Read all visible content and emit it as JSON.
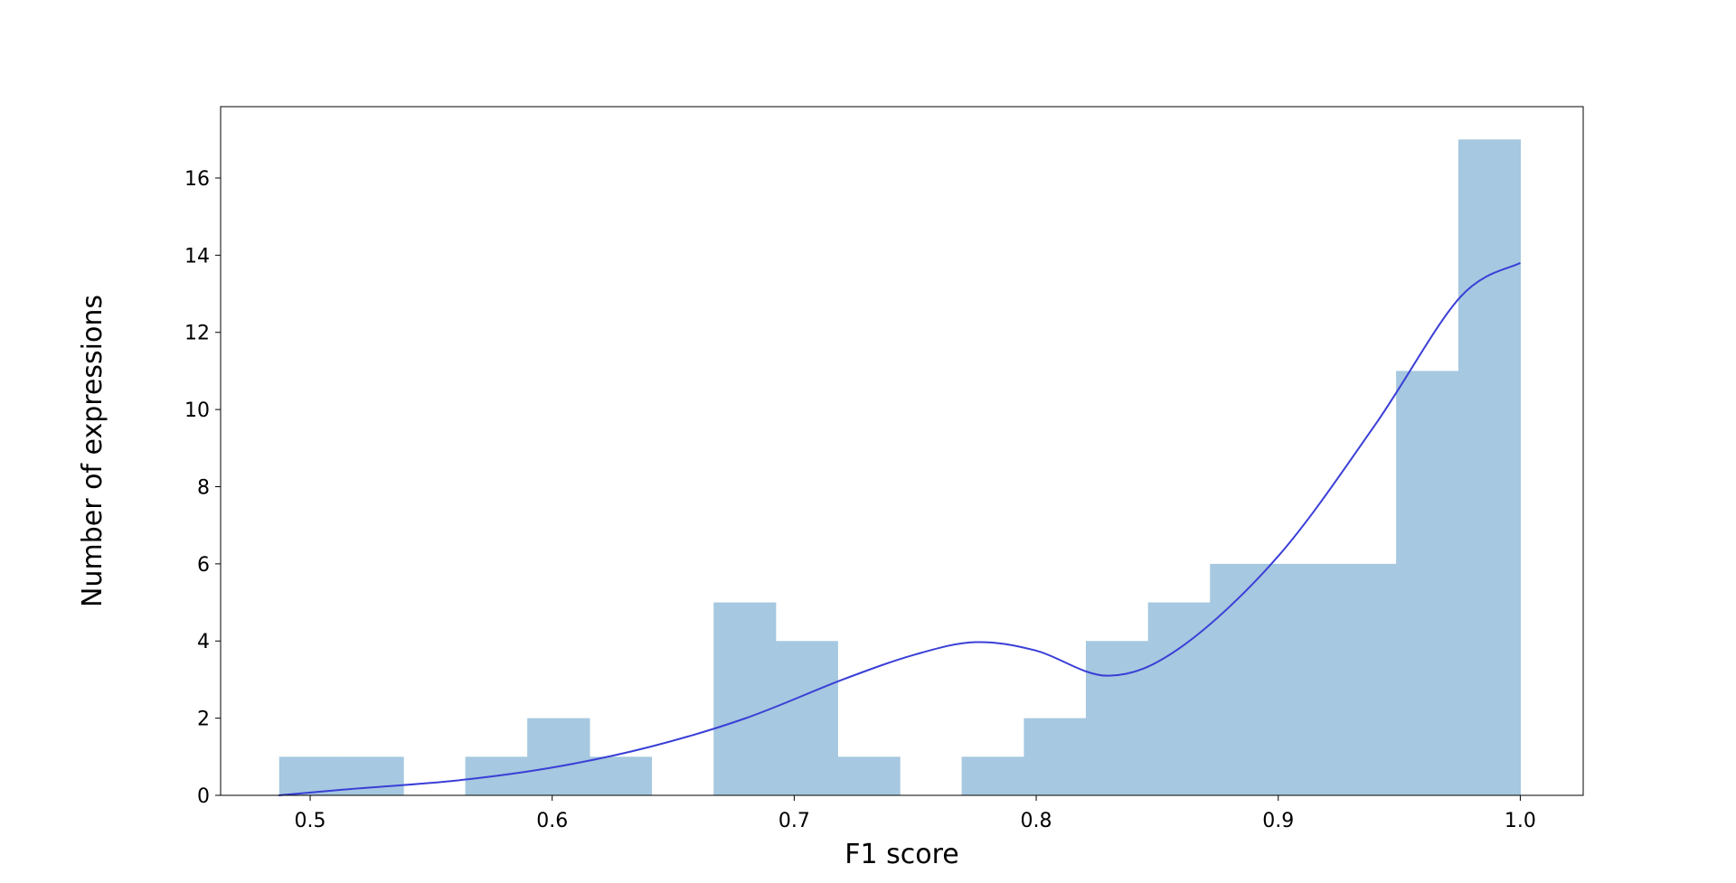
{
  "chart_data": {
    "type": "bar",
    "title": "",
    "xlabel": "F1 score",
    "ylabel": "Number of expressions",
    "xlim": [
      0.463,
      1.026
    ],
    "ylim": [
      0,
      17.85
    ],
    "grid": false,
    "legend": "none",
    "x_ticks": [
      {
        "value": 0.5,
        "label": "0.5"
      },
      {
        "value": 0.6,
        "label": "0.6"
      },
      {
        "value": 0.7,
        "label": "0.7"
      },
      {
        "value": 0.8,
        "label": "0.8"
      },
      {
        "value": 0.9,
        "label": "0.9"
      },
      {
        "value": 1.0,
        "label": "1.0"
      }
    ],
    "y_ticks": [
      {
        "value": 0,
        "label": "0"
      },
      {
        "value": 2,
        "label": "2"
      },
      {
        "value": 4,
        "label": "4"
      },
      {
        "value": 6,
        "label": "6"
      },
      {
        "value": 8,
        "label": "8"
      },
      {
        "value": 10,
        "label": "10"
      },
      {
        "value": 12,
        "label": "12"
      },
      {
        "value": 14,
        "label": "14"
      },
      {
        "value": 16,
        "label": "16"
      }
    ],
    "bin_edges": [
      0.4872,
      0.5128,
      0.5385,
      0.5641,
      0.5897,
      0.6154,
      0.641,
      0.6667,
      0.6923,
      0.7179,
      0.7436,
      0.7692,
      0.7949,
      0.8205,
      0.8462,
      0.8718,
      0.8974,
      0.9231,
      0.9487,
      0.9744,
      1.0
    ],
    "counts": [
      1,
      1,
      0,
      1,
      2,
      1,
      0,
      5,
      4,
      1,
      0,
      1,
      2,
      4,
      5,
      6,
      6,
      6,
      11,
      17
    ],
    "kde": {
      "x": [
        0.487,
        0.52,
        0.56,
        0.6,
        0.64,
        0.68,
        0.72,
        0.75,
        0.775,
        0.8,
        0.83,
        0.86,
        0.9,
        0.94,
        0.975,
        1.0
      ],
      "y": [
        0.0,
        0.18,
        0.38,
        0.72,
        1.25,
        2.0,
        3.0,
        3.65,
        3.97,
        3.75,
        3.1,
        3.85,
        6.2,
        9.6,
        12.9,
        13.8
      ]
    },
    "colors": {
      "bars": "#a6c8e0",
      "kde": "#3a3fd6"
    }
  }
}
